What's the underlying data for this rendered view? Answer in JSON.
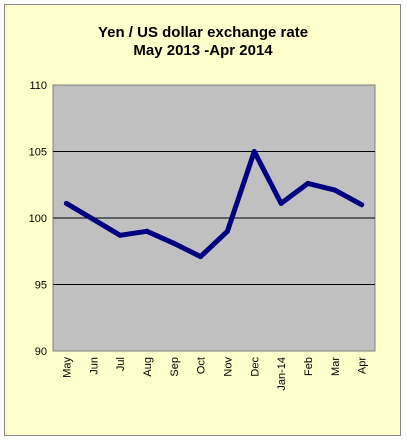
{
  "chart_data": {
    "type": "line",
    "title": "Yen / US dollar exchange rate",
    "subtitle": "May 2013 -Apr 2014",
    "categories": [
      "May",
      "Jun",
      "Jul",
      "Aug",
      "Sep",
      "Oct",
      "Nov",
      "Dec",
      "Jan-14",
      "Feb",
      "Mar",
      "Apr"
    ],
    "series": [
      {
        "values": [
          101.1,
          99.9,
          98.7,
          99.0,
          98.1,
          97.1,
          99.0,
          105.0,
          101.1,
          102.6,
          102.1,
          101.0
        ]
      }
    ],
    "yticks": [
      "90",
      "95",
      "100",
      "105",
      "110"
    ],
    "ylim": [
      90,
      110
    ],
    "grid": true,
    "legend": false,
    "colors": {
      "line": "#000080",
      "plot_background": "#c0c0c0",
      "chart_background": "#ffffcc",
      "gridline": "#000000"
    }
  }
}
